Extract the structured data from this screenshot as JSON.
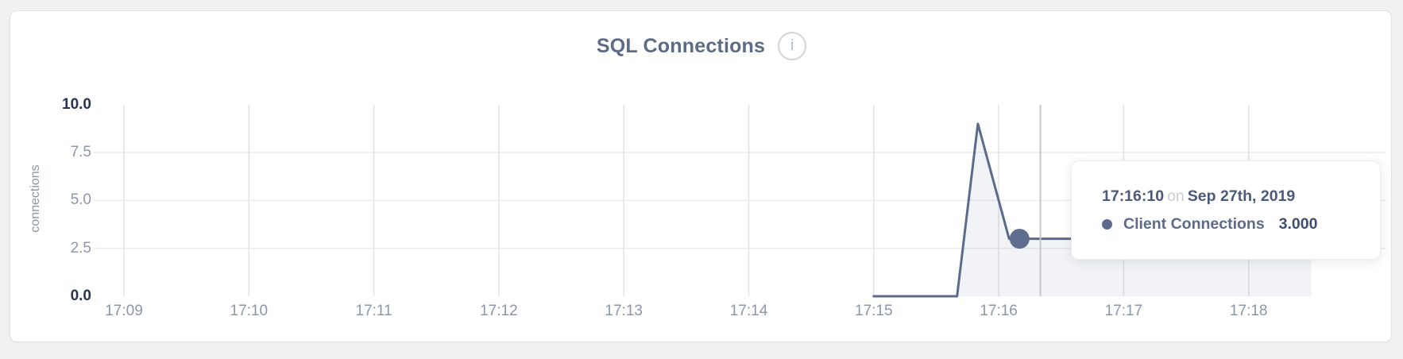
{
  "header": {
    "title": "SQL Connections",
    "info_icon_glyph": "i"
  },
  "chart_data": {
    "type": "line",
    "title": "SQL Connections",
    "ylabel": "connections",
    "xlabel": "",
    "ylim": [
      0,
      10
    ],
    "grid": true,
    "y_ticks": [
      {
        "label": "10.0",
        "value": 10,
        "emphasis": true
      },
      {
        "label": "7.5",
        "value": 7.5,
        "emphasis": false
      },
      {
        "label": "5.0",
        "value": 5,
        "emphasis": false
      },
      {
        "label": "2.5",
        "value": 2.5,
        "emphasis": false
      },
      {
        "label": "0.0",
        "value": 0,
        "emphasis": true
      }
    ],
    "x_ticks": [
      "17:09",
      "17:10",
      "17:11",
      "17:12",
      "17:13",
      "17:14",
      "17:15",
      "17:16",
      "17:17",
      "17:18"
    ],
    "x_axis_start": "17:09:00",
    "seconds_per_tick": 60,
    "series": [
      {
        "name": "Client Connections",
        "color": "#5b6b8c",
        "fill": "rgba(91,107,140,0.08)",
        "points": [
          [
            "17:15:00",
            0
          ],
          [
            "17:15:40",
            0
          ],
          [
            "17:15:50",
            9
          ],
          [
            "17:16:05",
            3
          ],
          [
            "17:16:10",
            3
          ],
          [
            "17:18:30",
            3
          ]
        ]
      }
    ],
    "hover": {
      "point_time": "17:16:10",
      "point_value": 3,
      "crosshair_time": "17:16:20"
    }
  },
  "tooltip": {
    "time": "17:16:10",
    "connector": "on",
    "date": "Sep 27th, 2019",
    "series_name": "Client Connections",
    "value": "3.000",
    "marker_color": "#5b6b8c"
  },
  "colors": {
    "page_bg": "#f1f1f2",
    "card_bg": "#ffffff",
    "title": "#5c6b87",
    "grid_vertical": "#e3e3e6",
    "grid_horizontal": "#ececef",
    "crosshair": "#c7c7cb",
    "line": "#5b6b8c",
    "dot": "#5f6e8e",
    "tick_muted": "#8e97a9",
    "tick_emphasis": "#29344e"
  }
}
